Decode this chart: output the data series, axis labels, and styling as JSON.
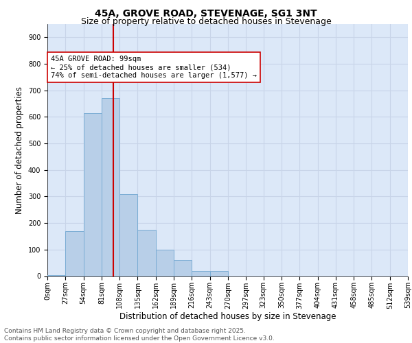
{
  "title_line1": "45A, GROVE ROAD, STEVENAGE, SG1 3NT",
  "title_line2": "Size of property relative to detached houses in Stevenage",
  "xlabel": "Distribution of detached houses by size in Stevenage",
  "ylabel": "Number of detached properties",
  "bin_edges": [
    0,
    27,
    54,
    81,
    108,
    135,
    162,
    189,
    216,
    243,
    270,
    297,
    323,
    350,
    377,
    404,
    431,
    458,
    485,
    512,
    539
  ],
  "bar_heights": [
    5,
    170,
    615,
    670,
    310,
    175,
    100,
    60,
    20,
    20,
    0,
    0,
    0,
    0,
    0,
    0,
    0,
    0,
    0,
    0
  ],
  "bar_color": "#b8cfe8",
  "bar_edge_color": "#7aacd4",
  "property_size": 99,
  "vline_color": "#cc0000",
  "annotation_text": "45A GROVE ROAD: 99sqm\n← 25% of detached houses are smaller (534)\n74% of semi-detached houses are larger (1,577) →",
  "annotation_box_color": "#ffffff",
  "annotation_box_edge": "#cc0000",
  "ylim": [
    0,
    950
  ],
  "yticks": [
    0,
    100,
    200,
    300,
    400,
    500,
    600,
    700,
    800,
    900
  ],
  "grid_color": "#c8d4e8",
  "background_color": "#dce8f8",
  "footer_text": "Contains HM Land Registry data © Crown copyright and database right 2025.\nContains public sector information licensed under the Open Government Licence v3.0.",
  "title_fontsize": 10,
  "subtitle_fontsize": 9,
  "tick_label_fontsize": 7,
  "axis_label_fontsize": 8.5,
  "annotation_fontsize": 7.5,
  "footer_fontsize": 6.5
}
